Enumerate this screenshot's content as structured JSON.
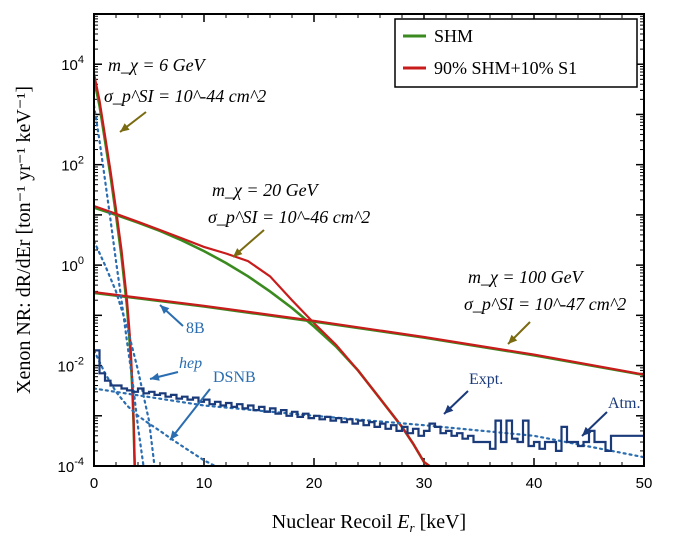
{
  "chart_data": {
    "type": "line",
    "xlabel_prefix": "Nuclear Recoil ",
    "xlabel_var": "E",
    "xlabel_sub": "r",
    "xlabel_unit": " [keV]",
    "ylabel": "Xenon NR: dR/dEr [ton⁻¹ yr⁻¹ keV⁻¹]",
    "xlim": [
      0,
      50
    ],
    "ylim": [
      0.0001,
      100000
    ],
    "yscale": "log",
    "x_ticks": [
      0,
      10,
      20,
      30,
      40,
      50
    ],
    "x_tick_labels": [
      "0",
      "10",
      "20",
      "30",
      "40",
      "50"
    ],
    "y_ticks": [
      0.0001,
      0.01,
      1,
      100,
      10000
    ],
    "y_tick_bases": [
      "10",
      "10",
      "10",
      "10",
      "10"
    ],
    "y_tick_exps": [
      "-4",
      "-2",
      "0",
      "2",
      "4"
    ],
    "legend": {
      "position": "top-right",
      "entries": [
        {
          "label": "SHM",
          "color": "#3a8a1f"
        },
        {
          "label": "90% SHM+10% S1",
          "color": "#c81c1c"
        }
      ]
    },
    "colors": {
      "shm": "#3a8a1f",
      "mix": "#c81c1c",
      "background": "#2a6db0",
      "expt": "#1a3a7a",
      "arrow_fill": "#7a6a10",
      "arrow_edge": "#4a7a1a"
    },
    "annotations": {
      "wimp6_mass": "m_χ = 6 GeV",
      "wimp6_xsec": "σ_p^SI = 10^-44 cm^2",
      "wimp20_mass": "m_χ = 20 GeV",
      "wimp20_xsec": "σ_p^SI = 10^-46 cm^2",
      "wimp100_mass": "m_χ = 100 GeV",
      "wimp100_xsec": "σ_p^SI = 10^-47 cm^2",
      "b8_label": "8B",
      "hep_label": "hep",
      "dsnb_label": "DSNB",
      "expt_label": "Expt.",
      "atm_label": "Atm."
    },
    "series": [
      {
        "name": "SHM",
        "group": "m=6 GeV",
        "x": [
          0,
          0.5,
          1,
          1.5,
          2,
          2.5,
          3,
          3.3,
          3.5,
          3.6,
          3.7
        ],
        "y": [
          5000,
          1500,
          300,
          60,
          10,
          1.5,
          0.15,
          0.02,
          0.003,
          0.0007,
          0.0001
        ]
      },
      {
        "name": "90% SHM+10% S1",
        "group": "m=6 GeV",
        "x": [
          0,
          0.5,
          1,
          1.5,
          2,
          2.5,
          3,
          3.3,
          3.5,
          3.6,
          3.7
        ],
        "y": [
          6500,
          1900,
          380,
          75,
          13,
          2,
          0.2,
          0.03,
          0.004,
          0.0008,
          0.0001
        ]
      },
      {
        "name": "SHM",
        "group": "m=20 GeV",
        "x": [
          0,
          2,
          4,
          6,
          8,
          10,
          12,
          14,
          16,
          18,
          20,
          22,
          24,
          26,
          28,
          29,
          30,
          30.5
        ],
        "y": [
          14,
          10,
          7,
          4.8,
          3.1,
          1.9,
          1.1,
          0.6,
          0.3,
          0.14,
          0.06,
          0.024,
          0.008,
          0.0022,
          0.0006,
          0.00028,
          0.00012,
          0.0001
        ]
      },
      {
        "name": "90% SHM+10% S1",
        "group": "m=20 GeV",
        "x": [
          0,
          2,
          4,
          6,
          8,
          10,
          12,
          14,
          16,
          18,
          20,
          22,
          24,
          26,
          28,
          29,
          30,
          30.5
        ],
        "y": [
          15,
          10.5,
          7.3,
          5,
          3.4,
          2.3,
          1.7,
          1.2,
          0.6,
          0.2,
          0.07,
          0.026,
          0.008,
          0.0022,
          0.0006,
          0.00028,
          0.00012,
          0.0001
        ]
      },
      {
        "name": "SHM",
        "group": "m=100 GeV",
        "x": [
          0,
          10,
          20,
          30,
          40,
          50
        ],
        "y": [
          0.28,
          0.15,
          0.075,
          0.036,
          0.016,
          0.0065
        ]
      },
      {
        "name": "90% SHM+10% S1",
        "group": "m=100 GeV",
        "x": [
          0,
          10,
          20,
          30,
          40,
          50
        ],
        "y": [
          0.29,
          0.155,
          0.078,
          0.037,
          0.0165,
          0.0066
        ]
      },
      {
        "name": "8B",
        "x": [
          0,
          0.5,
          1,
          1.5,
          2,
          2.5,
          3,
          3.5,
          4,
          4.5
        ],
        "y": [
          1500,
          300,
          50,
          8,
          1.2,
          0.2,
          0.03,
          0.005,
          0.0006,
          0.0001
        ]
      },
      {
        "name": "hep",
        "x": [
          0,
          1,
          2,
          3,
          4,
          5,
          5.5
        ],
        "y": [
          3,
          1,
          0.3,
          0.06,
          0.008,
          0.0008,
          0.0001
        ]
      },
      {
        "name": "DSNB",
        "x": [
          0,
          1,
          2,
          3,
          4,
          5,
          6,
          7,
          8,
          9,
          10,
          11
        ],
        "y": [
          0.02,
          0.007,
          0.003,
          0.0016,
          0.001,
          0.0007,
          0.0005,
          0.00035,
          0.00025,
          0.00018,
          0.00013,
          0.0001
        ]
      },
      {
        "name": "Atm.",
        "x": [
          0,
          10,
          20,
          30,
          40,
          50
        ],
        "y": [
          0.0035,
          0.0016,
          0.001,
          0.00065,
          0.0004,
          0.00015
        ]
      },
      {
        "name": "Expt.",
        "step": true,
        "x": [
          0,
          0.5,
          1,
          1.5,
          2,
          2.5,
          3,
          3.5,
          4,
          4.5,
          5,
          5.5,
          6,
          6.5,
          7,
          7.5,
          8,
          8.5,
          9,
          9.5,
          10,
          10.5,
          11,
          11.5,
          12,
          12.5,
          13,
          13.5,
          14,
          14.5,
          15,
          15.5,
          16,
          16.5,
          17,
          17.5,
          18,
          18.5,
          19,
          19.5,
          20,
          20.5,
          21,
          21.5,
          22,
          22.5,
          23,
          23.5,
          24,
          24.5,
          25,
          25.5,
          26,
          26.5,
          27,
          27.5,
          28,
          28.5,
          29,
          29.5,
          30,
          30.5,
          31,
          31.5,
          32,
          32.5,
          33,
          33.5,
          34,
          34.5,
          35,
          35.5,
          36,
          36.5,
          37,
          37.5,
          38,
          38.5,
          39,
          39.5,
          40,
          40.5,
          41,
          41.5,
          42,
          42.5,
          43,
          43.5,
          44,
          44.5,
          45,
          45.5,
          46,
          46.5,
          47,
          47.5,
          48,
          48.5,
          49,
          49.5
        ],
        "y": [
          0.02,
          0.007,
          0.005,
          0.004,
          0.004,
          0.0035,
          0.0032,
          0.003,
          0.0035,
          0.0028,
          0.003,
          0.0026,
          0.0028,
          0.0024,
          0.0026,
          0.0022,
          0.0024,
          0.0021,
          0.0023,
          0.0019,
          0.0021,
          0.0017,
          0.0019,
          0.0016,
          0.0018,
          0.0015,
          0.0017,
          0.0014,
          0.0016,
          0.0013,
          0.0015,
          0.0012,
          0.0014,
          0.0011,
          0.0013,
          0.001,
          0.0012,
          0.00095,
          0.0011,
          0.0009,
          0.001,
          0.00085,
          0.00095,
          0.0008,
          0.0009,
          0.00075,
          0.00085,
          0.0007,
          0.0008,
          0.00065,
          0.00075,
          0.0006,
          0.0007,
          0.00055,
          0.00065,
          0.0005,
          0.0006,
          0.00045,
          0.00055,
          0.0004,
          0.0005,
          0.0007,
          0.0006,
          0.00045,
          0.0005,
          0.0004,
          0.00045,
          0.00035,
          0.0004,
          0.0003,
          0.0003,
          0.0003,
          0.00022,
          0.0008,
          0.0003,
          0.0008,
          0.00035,
          0.0003,
          0.0008,
          0.00025,
          0.0003,
          0.00022,
          0.0003,
          0.0003,
          0.0002,
          0.0006,
          0.0003,
          0.0003,
          0.00025,
          0.0003,
          0.0005,
          0.0003,
          0.0003,
          0.0002,
          0.0004,
          0.0004,
          0.0004,
          0.0004,
          0.0004,
          0.0004
        ]
      }
    ]
  }
}
